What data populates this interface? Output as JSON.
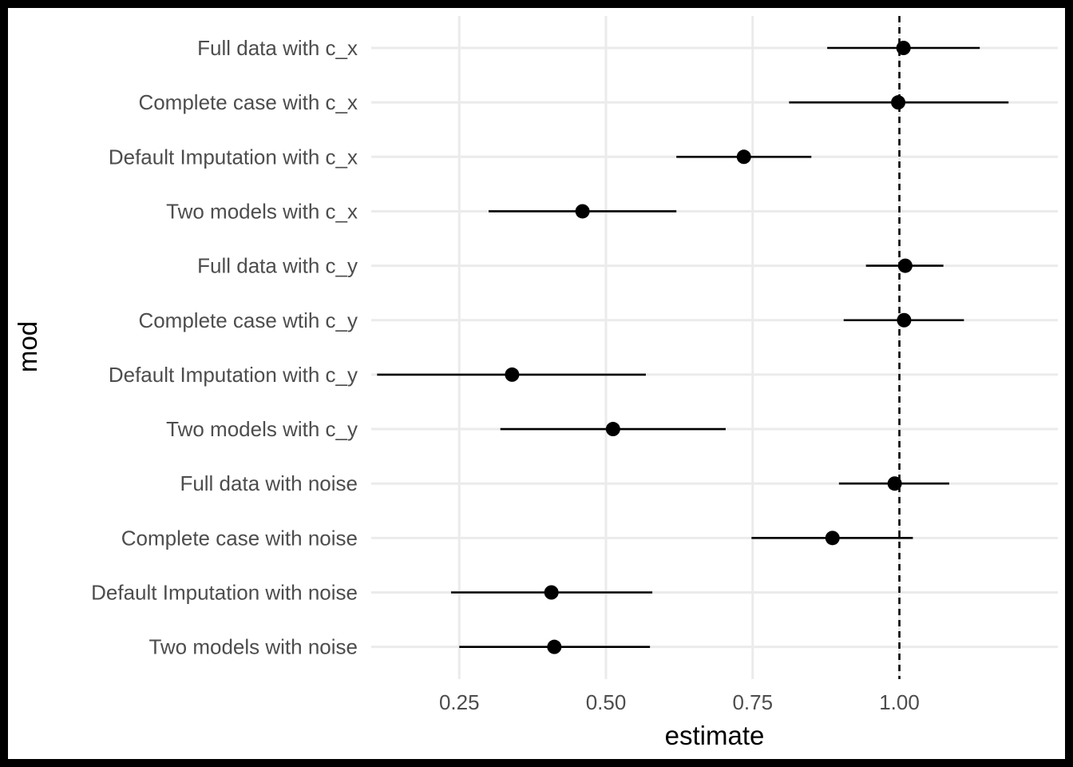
{
  "chart_data": {
    "type": "scatter",
    "xlabel": "estimate",
    "ylabel": "mod",
    "xlim": [
      0.1,
      1.27
    ],
    "x_ticks": [
      0.25,
      0.5,
      0.75,
      1.0
    ],
    "x_tick_labels": [
      "0.25",
      "0.50",
      "0.75",
      "1.00"
    ],
    "reference_line": 1.0,
    "grid": true,
    "rows": [
      {
        "label": "Full data with c_x",
        "estimate": 1.007,
        "lower": 0.877,
        "upper": 1.137
      },
      {
        "label": "Complete case with c_x",
        "estimate": 0.998,
        "lower": 0.812,
        "upper": 1.186
      },
      {
        "label": "Default Imputation with c_x",
        "estimate": 0.735,
        "lower": 0.62,
        "upper": 0.85
      },
      {
        "label": "Two models with c_x",
        "estimate": 0.46,
        "lower": 0.3,
        "upper": 0.62
      },
      {
        "label": "Full data with c_y",
        "estimate": 1.01,
        "lower": 0.943,
        "upper": 1.075
      },
      {
        "label": "Complete case wtih c_y",
        "estimate": 1.008,
        "lower": 0.905,
        "upper": 1.11
      },
      {
        "label": "Default Imputation with c_y",
        "estimate": 0.34,
        "lower": 0.11,
        "upper": 0.568
      },
      {
        "label": "Two models with c_y",
        "estimate": 0.512,
        "lower": 0.32,
        "upper": 0.704
      },
      {
        "label": "Full data with noise",
        "estimate": 0.992,
        "lower": 0.897,
        "upper": 1.085
      },
      {
        "label": "Complete case with noise",
        "estimate": 0.886,
        "lower": 0.748,
        "upper": 1.023
      },
      {
        "label": "Default Imputation with noise",
        "estimate": 0.407,
        "lower": 0.236,
        "upper": 0.579
      },
      {
        "label": "Two models with noise",
        "estimate": 0.412,
        "lower": 0.25,
        "upper": 0.575
      }
    ]
  }
}
